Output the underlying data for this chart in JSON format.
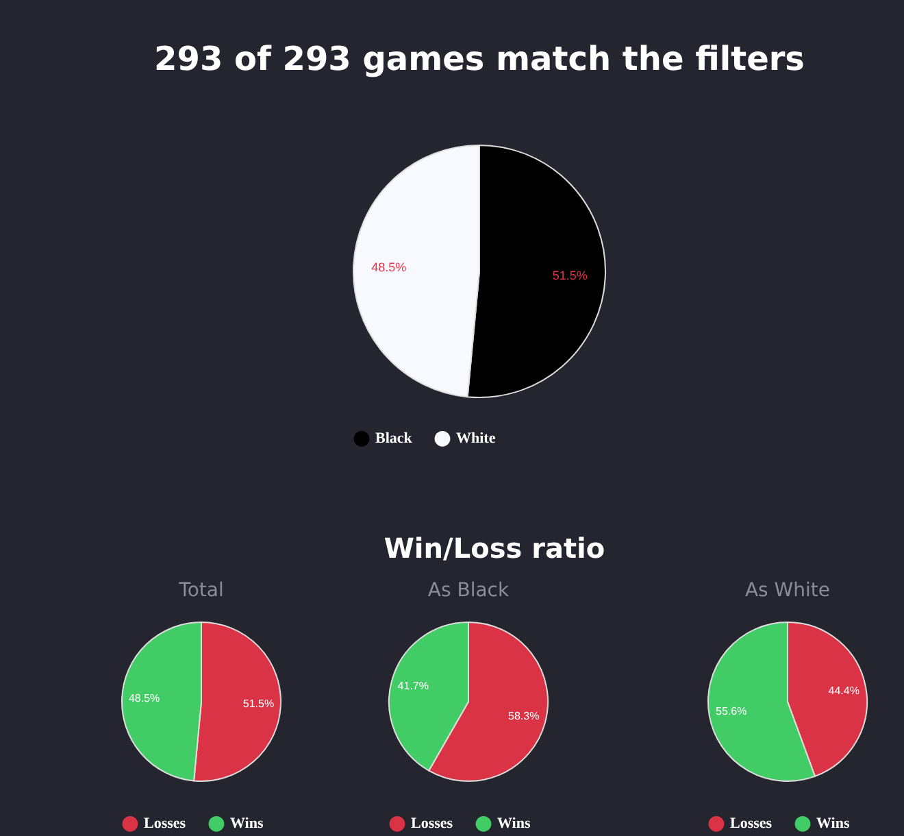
{
  "chart_data": [
    {
      "type": "pie",
      "title": "293 of 293 games match the filters",
      "categories": [
        "Black",
        "White"
      ],
      "values": [
        51.5,
        48.5
      ],
      "colors": [
        "#000000",
        "#f8f9fe"
      ],
      "value_labels": [
        "51.5%",
        "48.5%"
      ],
      "legend": "bottom"
    },
    {
      "type": "pie",
      "subtitle": "Total",
      "categories": [
        "Losses",
        "Wins"
      ],
      "values": [
        51.5,
        48.5
      ],
      "colors": [
        "#d93345",
        "#42cc65"
      ],
      "value_labels": [
        "51.5%",
        "48.5%"
      ],
      "legend": "bottom"
    },
    {
      "type": "pie",
      "title": "Win/Loss ratio",
      "subtitle": "As Black",
      "categories": [
        "Losses",
        "Wins"
      ],
      "values": [
        58.3,
        41.7
      ],
      "colors": [
        "#d93345",
        "#42cc65"
      ],
      "value_labels": [
        "58.3%",
        "41.7%"
      ],
      "legend": "bottom"
    },
    {
      "type": "pie",
      "subtitle": "As White",
      "categories": [
        "Losses",
        "Wins"
      ],
      "values": [
        44.4,
        55.6
      ],
      "colors": [
        "#d93345",
        "#42cc65"
      ],
      "value_labels": [
        "44.4%",
        "55.6%"
      ],
      "legend": "bottom"
    }
  ]
}
